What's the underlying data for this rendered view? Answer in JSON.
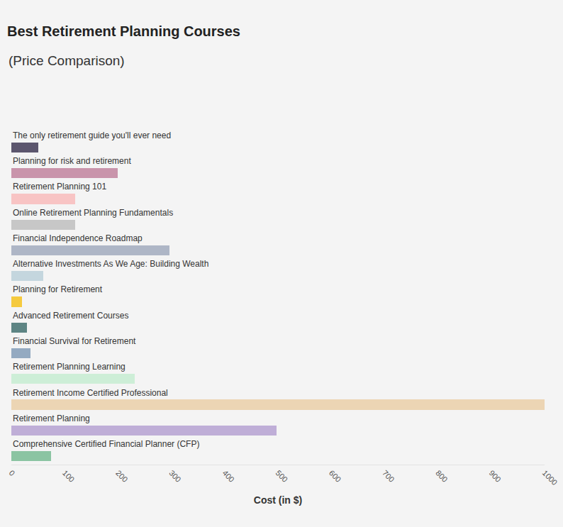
{
  "chart_data": {
    "type": "bar",
    "orientation": "horizontal",
    "title": "Best Retirement Planning Courses",
    "subtitle": "(Price Comparison)",
    "xlabel": "Cost (in $)",
    "categories": [
      "The only retirement guide you'll ever need",
      "Planning for risk and retirement",
      "Retirement Planning 101",
      "Online Retirement Planning Fundamentals",
      "Financial Independence Roadmap",
      "Alternative Investments As We Age: Building Wealth",
      "Planning for Retirement",
      "Advanced Retirement Courses",
      "Financial Survival for Retirement",
      "Retirement Planning Learning",
      "Retirement Income Certified Professional",
      "Retirement Planning",
      "Comprehensive Certified Financial Planner (CFP)"
    ],
    "values": [
      50,
      200,
      120,
      120,
      297,
      60,
      20,
      29,
      36,
      231,
      1000,
      497,
      75
    ],
    "colors": [
      "#5c566e",
      "#c994ab",
      "#f8c4c4",
      "#c7c7c7",
      "#aeb6c6",
      "#c4d6de",
      "#f5ca3e",
      "#5e8584",
      "#94aac1",
      "#cdeed7",
      "#ecd5b4",
      "#bfaed7",
      "#8bc4a2"
    ],
    "xlim": [
      0,
      1000
    ],
    "xticks": [
      0,
      100,
      200,
      300,
      400,
      500,
      600,
      700,
      800,
      900,
      1000
    ],
    "grid": false,
    "tick_labels": "x"
  }
}
